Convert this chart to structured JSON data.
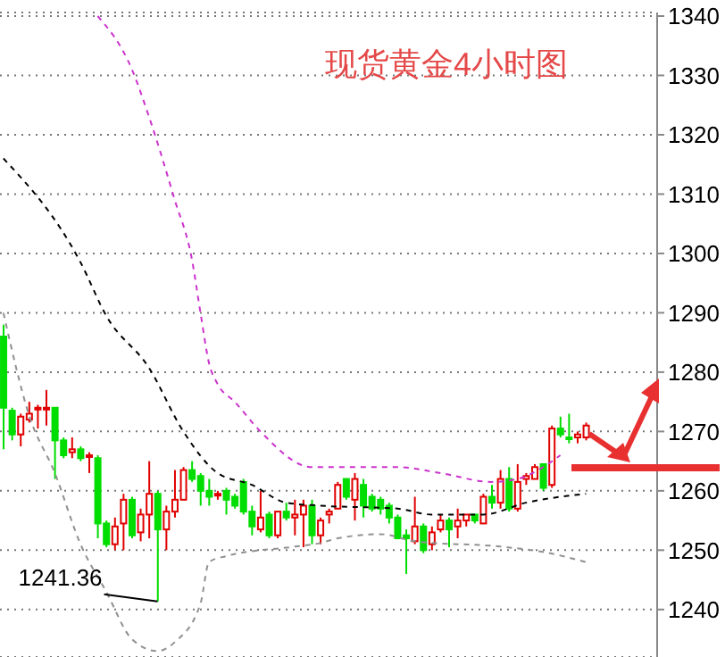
{
  "chart_data": {
    "type": "candlestick",
    "title": "现货黄金4小时图",
    "categories": [
      null,
      null,
      null,
      null,
      null,
      null,
      null,
      null,
      null,
      null,
      null,
      null,
      null,
      null,
      null,
      null,
      null,
      null,
      null,
      null,
      null,
      null,
      null,
      null,
      null,
      null,
      null,
      null,
      null,
      null,
      null,
      null,
      null,
      null,
      null,
      null,
      null,
      null,
      null,
      null,
      null,
      null,
      null,
      null,
      null,
      null,
      null,
      null,
      null,
      null,
      null,
      null,
      null,
      null,
      null,
      null,
      null,
      null,
      null,
      null,
      null,
      null,
      null,
      null,
      null,
      null,
      null,
      null,
      null
    ],
    "ohlc": [
      [
        1286,
        1288,
        1267,
        1274
      ],
      [
        1273.5,
        1274,
        1268.5,
        1269.5
      ],
      [
        1269.5,
        1273,
        1267.5,
        1272.5
      ],
      [
        1272,
        1275,
        1271.5,
        1273
      ],
      [
        1274,
        1274.5,
        1270.5,
        1274
      ],
      [
        1274,
        1277,
        1271,
        1274
      ],
      [
        1274,
        1274,
        1262,
        1268.5
      ],
      [
        1268.5,
        1269,
        1265.5,
        1266
      ],
      [
        1266.5,
        1269,
        1265.5,
        1267
      ],
      [
        1267,
        1267.5,
        1265,
        1265.5
      ],
      [
        1266,
        1266.5,
        1263,
        1266
      ],
      [
        1265.5,
        1266,
        1252,
        1254.5
      ],
      [
        1254.5,
        1255,
        1250.5,
        1251
      ],
      [
        1251,
        1255.5,
        1250,
        1254
      ],
      [
        1254.5,
        1259.5,
        1250,
        1258.5
      ],
      [
        1258.5,
        1259,
        1252,
        1252.5
      ],
      [
        1253,
        1257,
        1251.5,
        1256
      ],
      [
        1256,
        1265,
        1252,
        1259.5
      ],
      [
        1259.5,
        1260,
        1241.36,
        1253.5
      ],
      [
        1253.5,
        1257.5,
        1250,
        1256.5
      ],
      [
        1256.5,
        1263.5,
        1255.5,
        1258.5
      ],
      [
        1258.5,
        1264,
        1258.5,
        1263.5
      ],
      [
        1263.5,
        1265,
        1261.5,
        1262
      ],
      [
        1262.5,
        1263,
        1257.5,
        1260
      ],
      [
        1260,
        1262,
        1257.5,
        1259
      ],
      [
        1259.5,
        1260,
        1258.5,
        1259.5
      ],
      [
        1260,
        1260.5,
        1256,
        1258.5
      ],
      [
        1259,
        1259.5,
        1257,
        1257.5
      ],
      [
        1261.5,
        1262,
        1256,
        1256.5
      ],
      [
        1256.5,
        1257.5,
        1252.5,
        1254
      ],
      [
        1253.5,
        1260,
        1253,
        1255.5
      ],
      [
        1256,
        1256.5,
        1252,
        1252.5
      ],
      [
        1252.5,
        1256.5,
        1252,
        1256.5
      ],
      [
        1256.5,
        1258,
        1255,
        1255.5
      ],
      [
        1255.5,
        1258.5,
        1252.5,
        1256
      ],
      [
        1256,
        1258.5,
        1250.5,
        1257.5
      ],
      [
        1257.5,
        1258.5,
        1251,
        1252.5
      ],
      [
        1252.5,
        1255.5,
        1251,
        1255
      ],
      [
        1256,
        1257,
        1254.5,
        1256.5
      ],
      [
        1257,
        1261.5,
        1257,
        1261
      ],
      [
        1262,
        1262,
        1258.5,
        1259
      ],
      [
        1258.5,
        1263,
        1255,
        1262
      ],
      [
        1261,
        1262,
        1255.5,
        1257.5
      ],
      [
        1259,
        1259.5,
        1256.5,
        1257
      ],
      [
        1258.5,
        1259,
        1256,
        1257
      ],
      [
        1257.5,
        1258,
        1254.5,
        1255.5
      ],
      [
        1255.5,
        1256,
        1252,
        1252
      ],
      [
        1252.5,
        1253.5,
        1246,
        1252
      ],
      [
        1251.5,
        1259,
        1251,
        1254
      ],
      [
        1254,
        1254.5,
        1249.5,
        1250
      ],
      [
        1251,
        1254,
        1250,
        1253
      ],
      [
        1253.5,
        1256,
        1253,
        1255
      ],
      [
        1255,
        1255.5,
        1250.5,
        1253.5
      ],
      [
        1254,
        1257,
        1252,
        1255
      ],
      [
        1255,
        1256,
        1254,
        1256
      ],
      [
        1256,
        1256,
        1254.5,
        1255
      ],
      [
        1254.5,
        1259.5,
        1254.5,
        1259
      ],
      [
        1259,
        1261,
        1257,
        1258
      ],
      [
        1258,
        1263.5,
        1257,
        1262
      ],
      [
        1262,
        1264,
        1256.5,
        1257
      ],
      [
        1257,
        1264.5,
        1256.5,
        1261.5
      ],
      [
        1262,
        1263,
        1261,
        1262.5
      ],
      [
        1262,
        1264.5,
        1262,
        1264
      ],
      [
        1264.5,
        1264.5,
        1260,
        1260.5
      ],
      [
        1261,
        1271,
        1260.5,
        1270.5
      ],
      [
        1270.5,
        1272.5,
        1269,
        1269.5
      ],
      [
        1269,
        1273,
        1268,
        1269
      ],
      [
        1269,
        1270,
        1268,
        1269.5
      ],
      [
        1269,
        1271.5,
        1268.5,
        1271
      ]
    ],
    "colors": [
      "#00dd00",
      "#00dd00",
      "#e00000",
      "#e00000",
      "#e00000",
      "#e00000",
      "#00dd00",
      "#00dd00",
      "#e00000",
      "#00dd00",
      "#e00000",
      "#00dd00",
      "#00dd00",
      "#e00000",
      "#e00000",
      "#00dd00",
      "#e00000",
      "#e00000",
      "#00dd00",
      "#e00000",
      "#e00000",
      "#e00000",
      "#00dd00",
      "#00dd00",
      "#00dd00",
      "#e00000",
      "#00dd00",
      "#00dd00",
      "#00dd00",
      "#00dd00",
      "#e00000",
      "#00dd00",
      "#e00000",
      "#00dd00",
      "#e00000",
      "#e00000",
      "#00dd00",
      "#e00000",
      "#e00000",
      "#e00000",
      "#00dd00",
      "#e00000",
      "#00dd00",
      "#00dd00",
      "#00dd00",
      "#00dd00",
      "#00dd00",
      "#00dd00",
      "#e00000",
      "#00dd00",
      "#e00000",
      "#e00000",
      "#00dd00",
      "#e00000",
      "#e00000",
      "#00dd00",
      "#e00000",
      "#00dd00",
      "#e00000",
      "#00dd00",
      "#e00000",
      "#e00000",
      "#e00000",
      "#00dd00",
      "#e00000",
      "#00dd00",
      "#00dd00",
      "#e00000",
      "#e00000"
    ],
    "series": [
      {
        "type": "line",
        "color": "#000000",
        "line_style": "dashed",
        "values": [
          1316,
          null,
          null,
          null,
          null,
          null,
          null,
          null,
          null,
          1298.5,
          null,
          null,
          1289.5,
          null,
          null,
          null,
          null,
          1280.7,
          null,
          null,
          null,
          1270,
          null,
          null,
          null,
          1263,
          null,
          null,
          null,
          1261,
          null,
          null,
          null,
          1258,
          null,
          null,
          null,
          1257.5,
          null,
          null,
          null,
          null,
          null,
          null,
          null,
          null,
          1257,
          null,
          null,
          null,
          1256,
          null,
          null,
          null,
          null,
          null,
          1256,
          null,
          null,
          null,
          null,
          1258,
          null,
          null,
          null,
          1259,
          null,
          null,
          1259.5
        ]
      },
      {
        "type": "line",
        "color": "#cc33cc",
        "line_style": "dashed",
        "values": [
          null,
          null,
          null,
          null,
          null,
          null,
          null,
          null,
          null,
          null,
          null,
          1340,
          null,
          null,
          null,
          1331,
          null,
          1323,
          null,
          null,
          1309,
          null,
          1299,
          1290,
          1281.5,
          1278,
          null,
          1275,
          null,
          null,
          1270,
          null,
          null,
          null,
          null,
          null,
          1264,
          null,
          null,
          1264,
          null,
          null,
          null,
          null,
          null,
          null,
          1264,
          null,
          null,
          null,
          null,
          1263,
          null,
          null,
          null,
          null,
          null,
          1261.5,
          null,
          null,
          1262,
          null,
          null,
          1264,
          null,
          1266,
          null,
          null,
          null
        ]
      },
      {
        "type": "line",
        "color": "#909090",
        "line_style": "dashed",
        "values": [
          1290,
          null,
          null,
          1272.7,
          null,
          null,
          1263,
          null,
          null,
          1251,
          null,
          null,
          1243,
          null,
          null,
          1235,
          null,
          null,
          1233,
          null,
          1234.5,
          null,
          null,
          1241,
          1248,
          null,
          1249,
          null,
          null,
          null,
          null,
          null,
          null,
          null,
          1250.6,
          null,
          null,
          1251.2,
          null,
          1252,
          null,
          null,
          null,
          null,
          1252.7,
          null,
          null,
          null,
          1251.5,
          null,
          null,
          null,
          null,
          null,
          null,
          null,
          null,
          null,
          1250.6,
          null,
          null,
          null,
          null,
          1249.7,
          null,
          null,
          null,
          null,
          1248
        ]
      }
    ],
    "ylim": [
      1232,
      1340.6
    ],
    "yticks": [
      1240,
      1250,
      1260,
      1270,
      1280,
      1290,
      1300,
      1310,
      1320,
      1330,
      1340
    ],
    "grid": "y",
    "tick_labels": "y",
    "annotations": [
      "1241.36"
    ]
  }
}
